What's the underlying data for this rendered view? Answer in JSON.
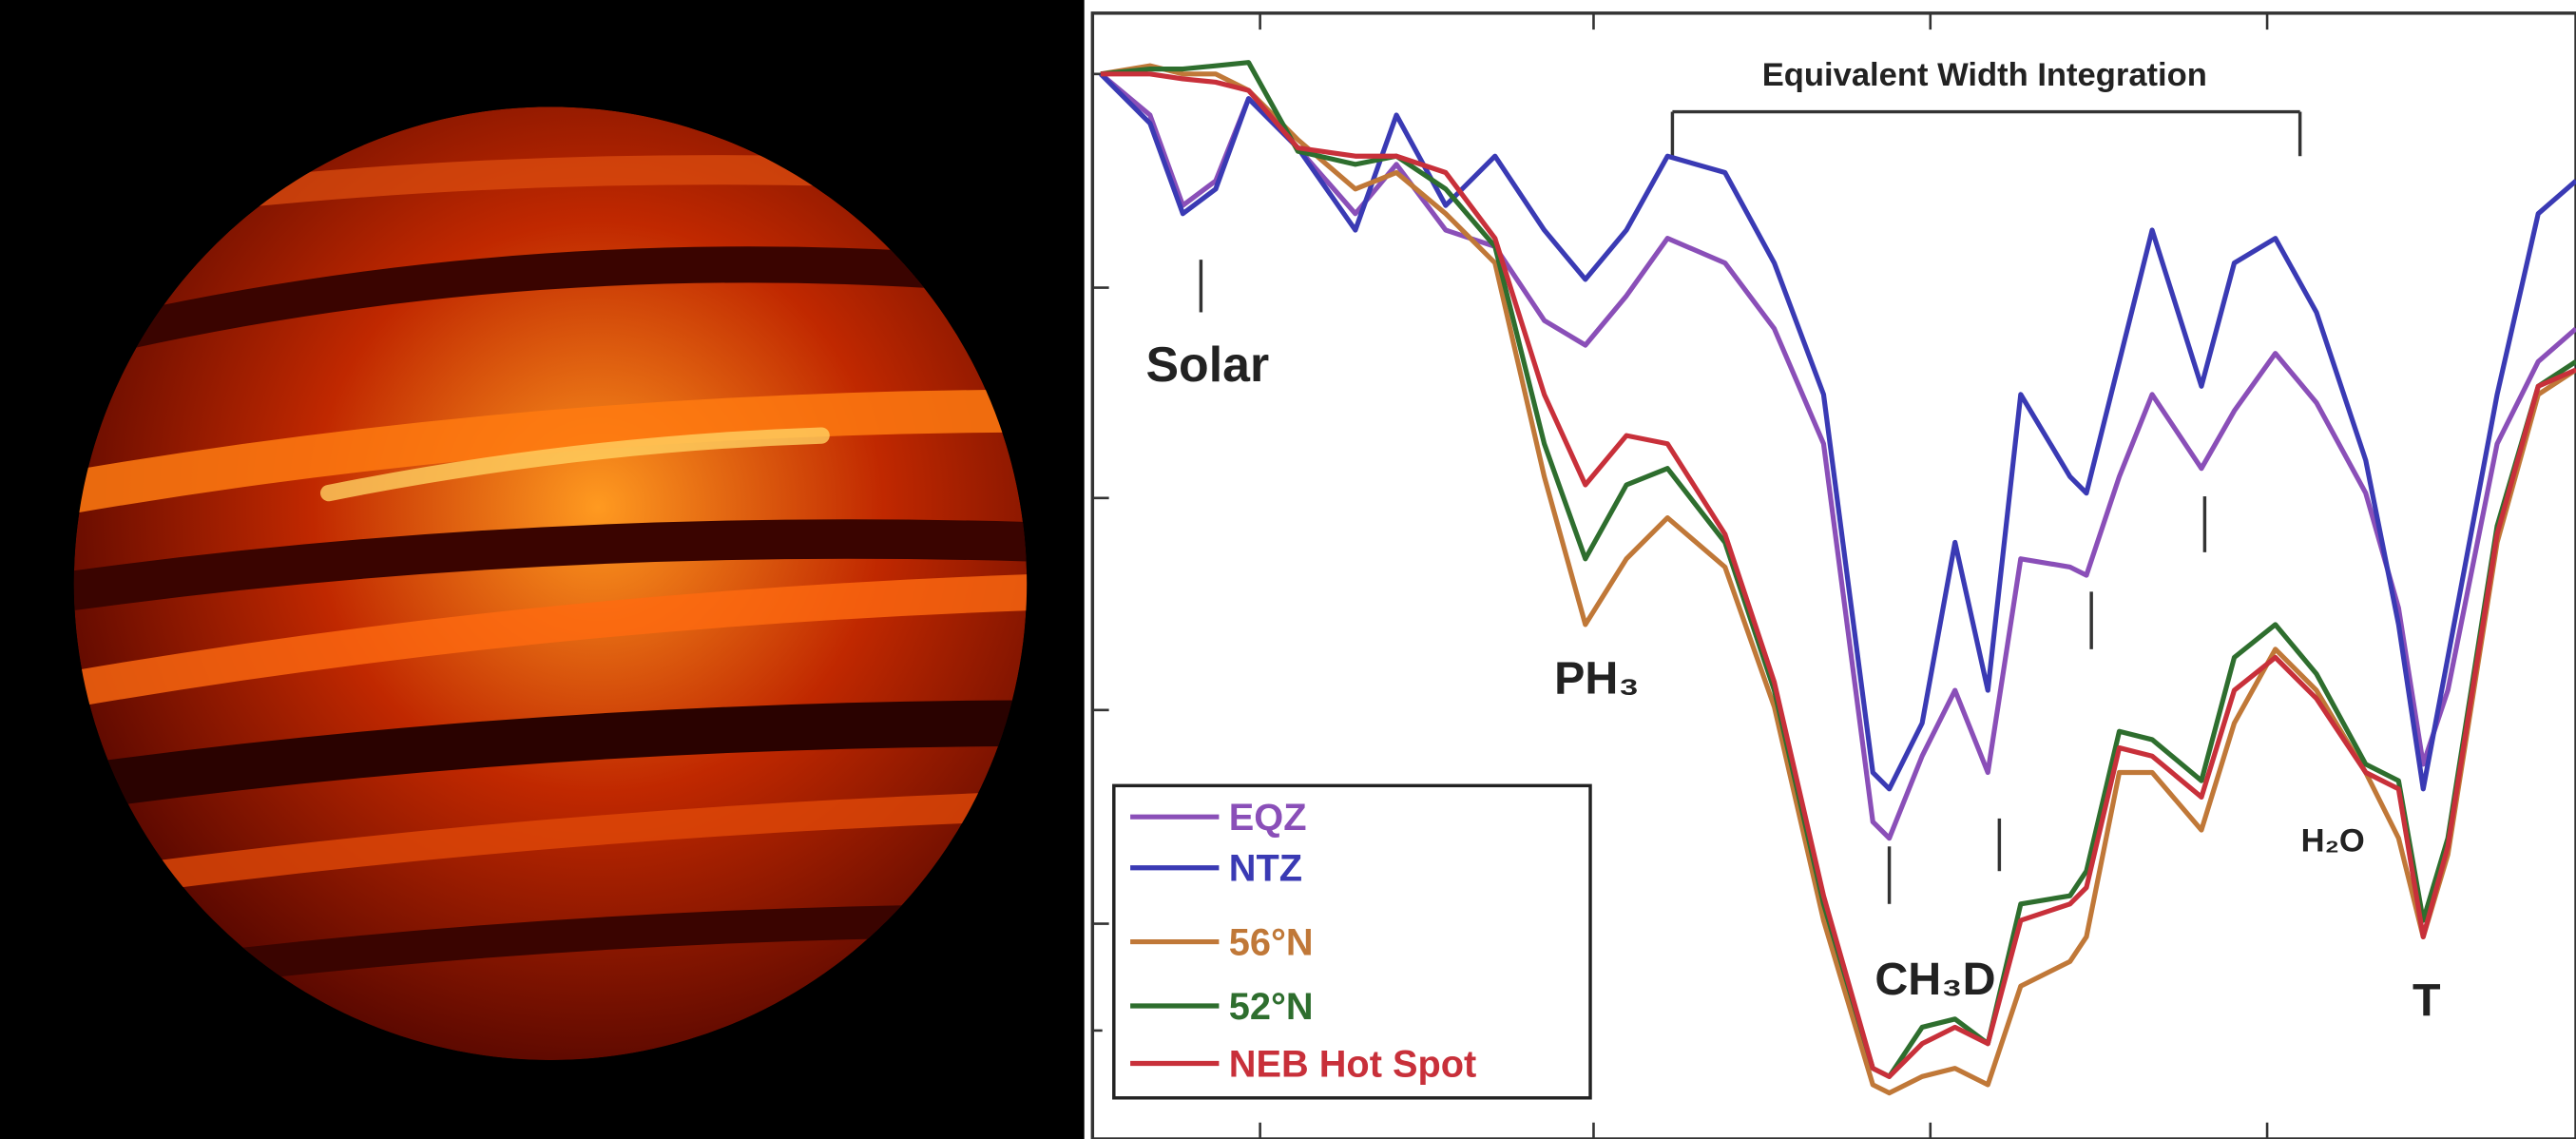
{
  "chart_data": {
    "type": "line",
    "title": "Equivalent Width Integration",
    "annotations": [
      "Solar",
      "PH₃",
      "CH₃D",
      "H₂O",
      "T"
    ],
    "legend": "lower left",
    "xlim": [
      0,
      903
    ],
    "ylim": [
      0,
      685
    ],
    "x": [
      5,
      35,
      55,
      75,
      95,
      125,
      160,
      185,
      215,
      245,
      275,
      300,
      325,
      350,
      385,
      415,
      445,
      475,
      485,
      505,
      525,
      545,
      565,
      595,
      605,
      625,
      645,
      675,
      695,
      720,
      745,
      775,
      795,
      810,
      825,
      855,
      880,
      903
    ],
    "series": [
      {
        "name": "EQZ",
        "color": "#8a4fb8",
        "values": [
          648,
          623,
          568,
          583,
          633,
          603,
          563,
          593,
          553,
          543,
          498,
          483,
          513,
          548,
          533,
          493,
          423,
          193,
          183,
          233,
          273,
          223,
          353,
          348,
          343,
          403,
          453,
          408,
          443,
          478,
          448,
          393,
          323,
          228,
          273,
          423,
          473,
          493
        ]
      },
      {
        "name": "NTZ",
        "color": "#3a3ab4",
        "values": [
          648,
          618,
          563,
          578,
          633,
          603,
          553,
          623,
          568,
          598,
          553,
          523,
          553,
          598,
          588,
          533,
          453,
          223,
          213,
          253,
          363,
          273,
          453,
          403,
          393,
          473,
          553,
          458,
          533,
          548,
          503,
          413,
          313,
          213,
          293,
          453,
          563,
          583
        ]
      },
      {
        "name": "56°N",
        "color": "#c07838",
        "values": [
          648,
          653,
          648,
          648,
          638,
          608,
          578,
          588,
          563,
          533,
          403,
          313,
          353,
          378,
          348,
          263,
          133,
          33,
          28,
          38,
          43,
          33,
          93,
          108,
          123,
          223,
          223,
          188,
          253,
          298,
          273,
          223,
          183,
          123,
          173,
          363,
          453,
          468
        ]
      },
      {
        "name": "52°N",
        "color": "#2e6e2e",
        "values": [
          648,
          651,
          651,
          653,
          655,
          601,
          593,
          598,
          578,
          543,
          423,
          353,
          398,
          408,
          363,
          273,
          143,
          43,
          38,
          68,
          73,
          58,
          143,
          148,
          163,
          248,
          243,
          218,
          293,
          313,
          283,
          228,
          218,
          133,
          183,
          373,
          458,
          473
        ]
      },
      {
        "name": "NEB Hot Spot",
        "color": "#c8303a",
        "values": [
          648,
          648,
          645,
          643,
          638,
          603,
          598,
          598,
          588,
          548,
          453,
          398,
          428,
          423,
          368,
          278,
          148,
          43,
          38,
          58,
          68,
          58,
          133,
          143,
          153,
          238,
          233,
          208,
          273,
          293,
          268,
          223,
          213,
          123,
          178,
          368,
          458,
          468
        ]
      }
    ]
  }
}
